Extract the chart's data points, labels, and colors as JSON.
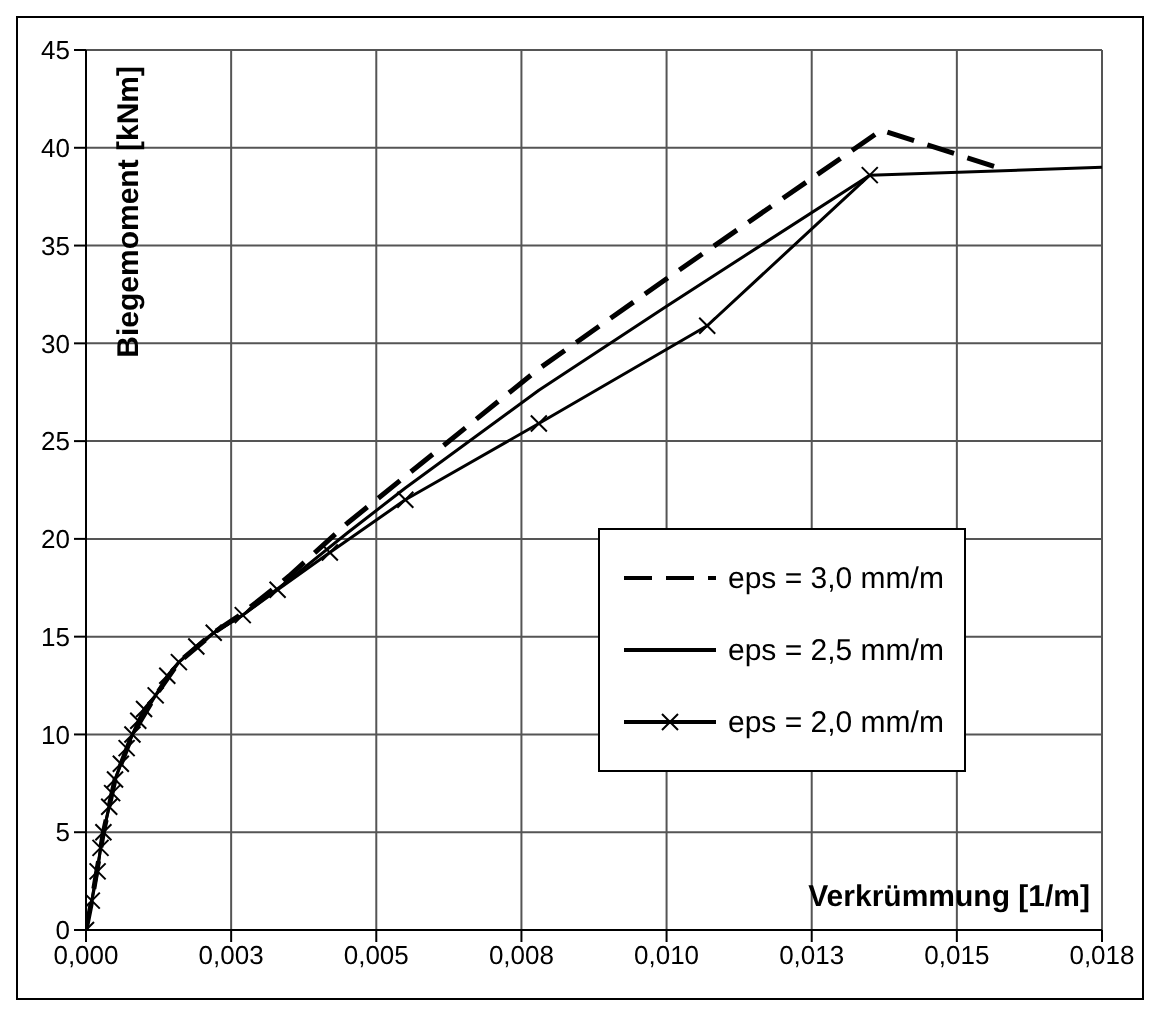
{
  "chart_data": {
    "type": "line",
    "xlabel": "Verkrümmung [1/m]",
    "ylabel": "Biegemoment [kNm]",
    "xlim": [
      0,
      0.0175
    ],
    "ylim": [
      0,
      45
    ],
    "xticks": [
      {
        "value": 0,
        "label": "0,000"
      },
      {
        "value": 0.0025,
        "label": "0,003"
      },
      {
        "value": 0.005,
        "label": "0,005"
      },
      {
        "value": 0.0075,
        "label": "0,008"
      },
      {
        "value": 0.01,
        "label": "0,010"
      },
      {
        "value": 0.0125,
        "label": "0,013"
      },
      {
        "value": 0.015,
        "label": "0,015"
      },
      {
        "value": 0.0175,
        "label": "0,018"
      }
    ],
    "yticks": [
      0,
      5,
      10,
      15,
      20,
      25,
      30,
      35,
      40,
      45
    ],
    "grid": true,
    "legend": "right",
    "series": [
      {
        "name": "eps = 3,0 mm/m",
        "color": "#000000",
        "line_style": "dashed",
        "x": [
          0,
          0.0001,
          0.0003,
          0.0005,
          0.0008,
          0.0012,
          0.0016,
          0.0022,
          0.0027,
          0.0035,
          0.0045,
          0.0055,
          0.0078,
          0.01,
          0.0137,
          0.0158
        ],
        "values": [
          0,
          1.5,
          5,
          7.7,
          10,
          12,
          13.7,
          15.2,
          16.2,
          18.1,
          20.8,
          23.2,
          28.7,
          33.3,
          40.9,
          38.9
        ]
      },
      {
        "name": "eps = 2,5 mm/m",
        "color": "#000000",
        "line_style": "solid",
        "x": [
          0,
          0.0001,
          0.0003,
          0.0005,
          0.0008,
          0.0012,
          0.0016,
          0.0022,
          0.0027,
          0.0035,
          0.0045,
          0.0055,
          0.0078,
          0.01,
          0.0135,
          0.0175
        ],
        "values": [
          0,
          1.5,
          5,
          7.7,
          10,
          12,
          13.7,
          15.2,
          16.1,
          17.9,
          20.3,
          22.6,
          27.6,
          31.9,
          38.6,
          39.0
        ]
      },
      {
        "name": "eps = 2,0 mm/m",
        "color": "#000000",
        "line_style": "solid",
        "marker": "cross",
        "x": [
          0,
          0.0001,
          0.0002,
          0.00025,
          0.0003,
          0.0004,
          0.00045,
          0.0005,
          0.0006,
          0.0007,
          0.0008,
          0.0009,
          0.001,
          0.0012,
          0.0014,
          0.0016,
          0.0019,
          0.0022,
          0.0027,
          0.0033,
          0.0042,
          0.0055,
          0.0078,
          0.0107,
          0.0135
        ],
        "values": [
          0,
          1.5,
          3,
          4.2,
          5,
          6.3,
          7,
          7.7,
          8.5,
          9.3,
          10,
          10.7,
          11.3,
          12,
          13,
          13.7,
          14.5,
          15.2,
          16.1,
          17.4,
          19.3,
          22,
          25.9,
          30.9,
          38.6
        ]
      }
    ]
  }
}
